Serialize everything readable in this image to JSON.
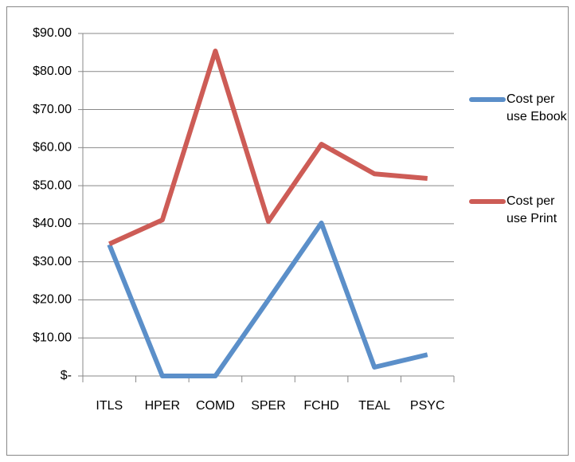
{
  "chart_data": {
    "type": "line",
    "categories": [
      "ITLS",
      "HPER",
      "COMD",
      "SPER",
      "FCHD",
      "TEAL",
      "PSYC"
    ],
    "series": [
      {
        "name": "Cost per use Ebook",
        "color": "#5b8fc9",
        "values": [
          34.5,
          0,
          0,
          20,
          40.2,
          2.3,
          5.6
        ]
      },
      {
        "name": "Cost per use Print",
        "color": "#cd5c56",
        "values": [
          34.7,
          41,
          85.4,
          40.6,
          60.9,
          53.1,
          51.9
        ]
      }
    ],
    "ylim": [
      0,
      90
    ],
    "yticks": [
      {
        "value": 0,
        "label": "$-"
      },
      {
        "value": 10,
        "label": "$10.00"
      },
      {
        "value": 20,
        "label": "$20.00"
      },
      {
        "value": 30,
        "label": "$30.00"
      },
      {
        "value": 40,
        "label": "$40.00"
      },
      {
        "value": 50,
        "label": "$50.00"
      },
      {
        "value": 60,
        "label": "$60.00"
      },
      {
        "value": 70,
        "label": "$70.00"
      },
      {
        "value": 80,
        "label": "$80.00"
      },
      {
        "value": 90,
        "label": "$90.00"
      }
    ],
    "grid": true,
    "legend": "right"
  }
}
